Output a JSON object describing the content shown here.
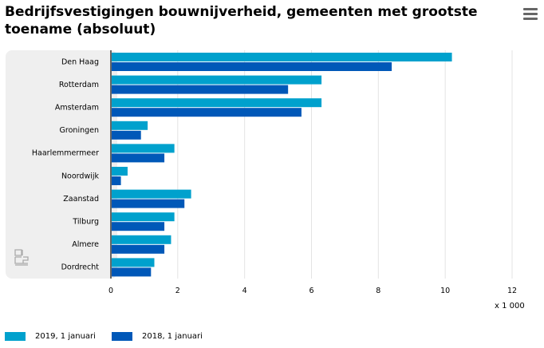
{
  "title": "Bedrijfsvestigingen bouwnijverheid, gemeenten met grootste toename (absoluut)",
  "menu_icon": "hamburger-menu-icon",
  "logo": "cbs",
  "chart_data": {
    "type": "bar",
    "orientation": "horizontal",
    "title": "Bedrijfsvestigingen bouwnijverheid, gemeenten met grootste toename (absoluut)",
    "categories": [
      "Den Haag",
      "Rotterdam",
      "Amsterdam",
      "Groningen",
      "Haarlemmermeer",
      "Noordwijk",
      "Zaanstad",
      "Tilburg",
      "Almere",
      "Dordrecht"
    ],
    "series": [
      {
        "name": "2019, 1 januari",
        "color": "#00a1cd",
        "values": [
          10.2,
          6.3,
          6.3,
          1.1,
          1.9,
          0.5,
          2.4,
          1.9,
          1.8,
          1.3
        ]
      },
      {
        "name": "2018, 1 januari",
        "color": "#0058b8",
        "values": [
          8.4,
          5.3,
          5.7,
          0.9,
          1.6,
          0.3,
          2.2,
          1.6,
          1.6,
          1.2
        ]
      }
    ],
    "xlim": [
      0,
      12
    ],
    "xticks": [
      "0",
      "2",
      "4",
      "6",
      "8",
      "10",
      "12"
    ],
    "xunit": "x 1 000",
    "grid": true,
    "legend": "bottom-left"
  }
}
